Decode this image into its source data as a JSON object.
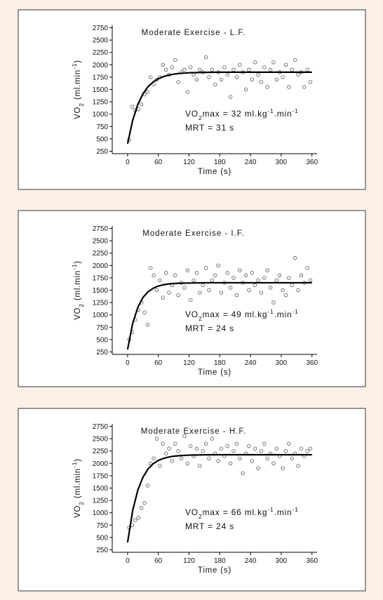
{
  "chart_data": [
    {
      "type": "scatter",
      "title": "Moderate Exercise - L.F.",
      "xlabel": "Time (s)",
      "ylabel": [
        "VO",
        "2",
        " (ml.min",
        "-1",
        ")"
      ],
      "annotations": [
        [
          "VO",
          "2",
          "max = 32 ml.kg",
          "-1",
          ".min",
          "-1"
        ],
        [
          "MRT = 31 s"
        ]
      ],
      "xlim": [
        -30,
        370
      ],
      "xticks": [
        0,
        60,
        120,
        180,
        240,
        300,
        360
      ],
      "ylim": [
        200,
        2800
      ],
      "yticks": [
        250,
        500,
        750,
        1000,
        1250,
        1500,
        1750,
        2000,
        2250,
        2500,
        2750
      ],
      "series": [
        {
          "type": "scatter",
          "color": "#555555",
          "x": [
            3,
            9,
            15,
            21,
            27,
            33,
            39,
            45,
            51,
            57,
            63,
            69,
            75,
            81,
            87,
            93,
            99,
            105,
            111,
            117,
            123,
            129,
            135,
            141,
            147,
            153,
            159,
            165,
            171,
            177,
            183,
            189,
            195,
            201,
            207,
            213,
            219,
            225,
            231,
            237,
            243,
            249,
            255,
            261,
            267,
            273,
            279,
            285,
            291,
            297,
            303,
            309,
            315,
            321,
            327,
            333,
            339,
            345,
            351,
            357
          ],
          "values": [
            480,
            1150,
            1080,
            1100,
            1200,
            1400,
            1450,
            1750,
            1600,
            1700,
            1750,
            2000,
            1900,
            1800,
            1950,
            2100,
            1650,
            1850,
            1900,
            1450,
            1950,
            1800,
            1700,
            1900,
            1850,
            2150,
            1750,
            1900,
            1600,
            1850,
            1700,
            1950,
            1800,
            1350,
            1900,
            1750,
            2000,
            1850,
            1500,
            1900,
            1700,
            2050,
            1800,
            1650,
            1950,
            1550,
            1900,
            2050,
            1700,
            1850,
            1750,
            2000,
            1550,
            1900,
            2100,
            1800,
            1850,
            1550,
            1900,
            1650
          ]
        },
        {
          "type": "line",
          "color": "#000000",
          "x": [
            0,
            10,
            20,
            30,
            40,
            50,
            60,
            70,
            80,
            90,
            100,
            120,
            150,
            180,
            240,
            300,
            360
          ],
          "values": [
            400,
            878,
            1198,
            1413,
            1558,
            1654,
            1718,
            1761,
            1790,
            1810,
            1824,
            1838,
            1846,
            1850,
            1850,
            1850,
            1850
          ]
        }
      ]
    },
    {
      "type": "scatter",
      "title": "Moderate Exercise - I.F.",
      "xlabel": "Time (s)",
      "ylabel": [
        "VO",
        "2",
        " (ml.min",
        "-1",
        ")"
      ],
      "annotations": [
        [
          "VO",
          "2",
          "max = 49 ml.kg",
          "-1",
          ".min",
          "-1"
        ],
        [
          "MRT = 24 s"
        ]
      ],
      "xlim": [
        -30,
        370
      ],
      "xticks": [
        0,
        60,
        120,
        180,
        240,
        300,
        360
      ],
      "ylim": [
        200,
        2800
      ],
      "yticks": [
        250,
        500,
        750,
        1000,
        1250,
        1500,
        1750,
        2000,
        2250,
        2500,
        2750
      ],
      "series": [
        {
          "type": "scatter",
          "color": "#555555",
          "x": [
            3,
            9,
            15,
            21,
            27,
            33,
            39,
            45,
            51,
            57,
            63,
            69,
            75,
            81,
            87,
            93,
            99,
            105,
            111,
            117,
            123,
            129,
            135,
            141,
            147,
            153,
            159,
            165,
            171,
            177,
            183,
            189,
            195,
            201,
            207,
            213,
            219,
            225,
            231,
            237,
            243,
            249,
            255,
            261,
            267,
            273,
            279,
            285,
            291,
            297,
            303,
            309,
            315,
            321,
            327,
            333,
            339,
            345,
            351,
            357
          ],
          "values": [
            500,
            650,
            900,
            1100,
            1250,
            1050,
            800,
            1950,
            1800,
            1500,
            1700,
            1350,
            1850,
            1450,
            1600,
            1800,
            1400,
            1650,
            1550,
            1900,
            1300,
            1700,
            1850,
            1450,
            1600,
            1950,
            1500,
            1700,
            1800,
            2000,
            1450,
            1650,
            1850,
            1550,
            1750,
            1400,
            1900,
            1650,
            1800,
            1500,
            1850,
            1600,
            1700,
            1450,
            1750,
            1900,
            1550,
            1250,
            1700,
            1800,
            1500,
            1400,
            1750,
            1600,
            2150,
            1500,
            1800,
            1650,
            1950,
            1700
          ]
        },
        {
          "type": "line",
          "color": "#000000",
          "x": [
            0,
            10,
            20,
            30,
            40,
            50,
            60,
            70,
            80,
            90,
            100,
            120,
            150,
            180,
            240,
            300,
            360
          ],
          "values": [
            300,
            831,
            1153,
            1353,
            1468,
            1539,
            1583,
            1610,
            1626,
            1635,
            1640,
            1645,
            1650,
            1650,
            1650,
            1650,
            1650
          ]
        }
      ]
    },
    {
      "type": "scatter",
      "title": "Moderate Exercise - H.F.",
      "xlabel": "Time (s)",
      "ylabel": [
        "VO",
        "2",
        " (ml.min",
        "-1",
        ")"
      ],
      "annotations": [
        [
          "VO",
          "2",
          "max = 66 ml.kg",
          "-1",
          ".min",
          "-1"
        ],
        [
          "MRT = 24 s"
        ]
      ],
      "xlim": [
        -30,
        370
      ],
      "xticks": [
        0,
        60,
        120,
        180,
        240,
        300,
        360
      ],
      "ylim": [
        200,
        2800
      ],
      "yticks": [
        250,
        500,
        750,
        1000,
        1250,
        1500,
        1750,
        2000,
        2250,
        2500,
        2750
      ],
      "series": [
        {
          "type": "scatter",
          "color": "#555555",
          "x": [
            3,
            9,
            15,
            21,
            27,
            33,
            39,
            45,
            51,
            57,
            63,
            69,
            75,
            81,
            87,
            93,
            99,
            105,
            111,
            117,
            123,
            129,
            135,
            141,
            147,
            153,
            159,
            165,
            171,
            177,
            183,
            189,
            195,
            201,
            207,
            213,
            219,
            225,
            231,
            237,
            243,
            249,
            255,
            261,
            267,
            273,
            279,
            285,
            291,
            297,
            303,
            309,
            315,
            321,
            327,
            333,
            339,
            345,
            351,
            357
          ],
          "values": [
            700,
            750,
            850,
            900,
            1100,
            1200,
            1550,
            2000,
            2100,
            2500,
            1950,
            2400,
            2200,
            2300,
            2050,
            2400,
            2250,
            2100,
            2550,
            2000,
            2350,
            2150,
            2300,
            1950,
            2250,
            2400,
            2100,
            2500,
            2200,
            2050,
            2300,
            2150,
            2350,
            2000,
            2250,
            2400,
            2100,
            1800,
            2200,
            2350,
            2050,
            2300,
            1900,
            2250,
            2400,
            2100,
            2200,
            2000,
            2300,
            2150,
            1900,
            2250,
            2400,
            2100,
            2200,
            1950,
            2300,
            2150,
            2250,
            2300
          ]
        },
        {
          "type": "line",
          "color": "#000000",
          "x": [
            0,
            10,
            20,
            30,
            40,
            50,
            60,
            70,
            80,
            90,
            100,
            120,
            150,
            180,
            240,
            300,
            360
          ],
          "values": [
            400,
            1048,
            1460,
            1720,
            1887,
            1992,
            2060,
            2100,
            2128,
            2145,
            2155,
            2167,
            2173,
            2175,
            2175,
            2175,
            2175
          ]
        }
      ]
    }
  ]
}
